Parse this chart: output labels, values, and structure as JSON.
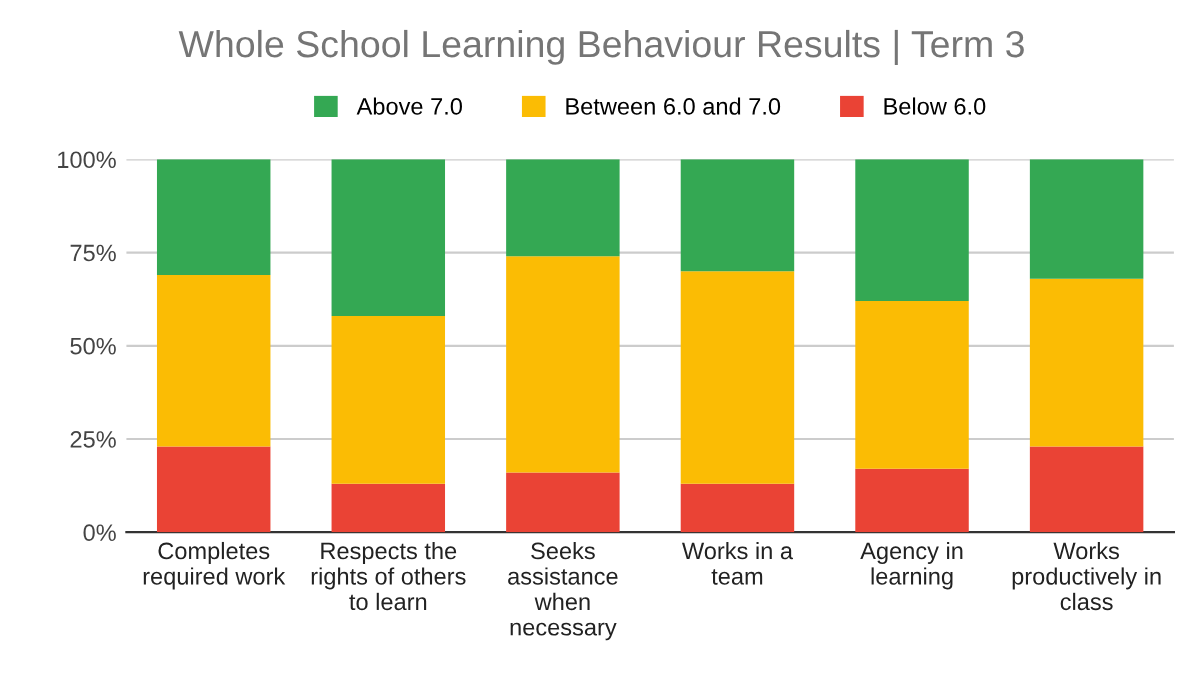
{
  "chart_data": {
    "type": "bar",
    "title": "Whole School Learning Behaviour Results | Term 3",
    "stacked": true,
    "categories": [
      "Completes\nrequired work",
      "Respects the\nrights of others\nto learn",
      "Seeks\nassistance\nwhen\nnecessary",
      "Works in a\nteam",
      "Agency in\nlearning",
      "Works\nproductively in\nclass"
    ],
    "series": [
      {
        "name": "Below 6.0",
        "color": "#ea4335",
        "values": [
          23,
          13,
          16,
          13,
          17,
          23
        ]
      },
      {
        "name": "Between 6.0 and 7.0",
        "color": "#fbbc04",
        "values": [
          46,
          45,
          58,
          57,
          45,
          45
        ]
      },
      {
        "name": "Above 7.0",
        "color": "#34a853",
        "values": [
          31,
          42,
          26,
          30,
          38,
          32
        ]
      }
    ],
    "ylim": [
      0,
      100
    ],
    "yticks": [
      {
        "value": 0,
        "label": "0%"
      },
      {
        "value": 25,
        "label": "25%"
      },
      {
        "value": 50,
        "label": "50%"
      },
      {
        "value": 75,
        "label": "75%"
      },
      {
        "value": 100,
        "label": "100%"
      }
    ],
    "grid": "y",
    "legend": "top"
  }
}
